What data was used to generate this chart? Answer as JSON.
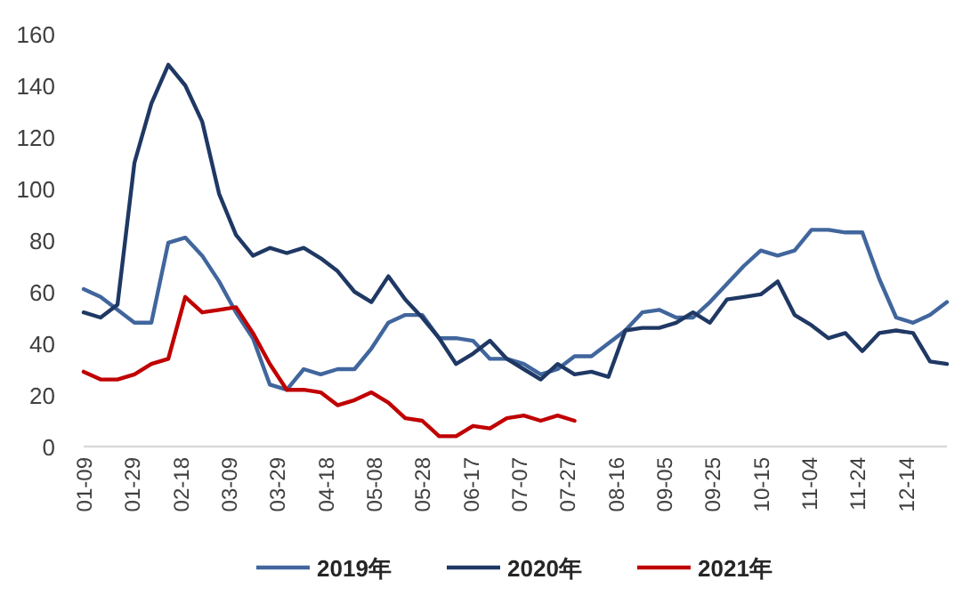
{
  "chart_data": {
    "type": "line",
    "x": [
      "--01-09",
      "--01-16",
      "--01-23",
      "--01-30",
      "--02-06",
      "--02-13",
      "--02-20",
      "--02-27",
      "--03-05",
      "--03-12",
      "--03-19",
      "--03-26",
      "--04-02",
      "--04-09",
      "--04-16",
      "--04-23",
      "--04-30",
      "--05-07",
      "--05-14",
      "--05-21",
      "--05-28",
      "--06-04",
      "--06-11",
      "--06-18",
      "--06-25",
      "--07-02",
      "--07-09",
      "--07-16",
      "--07-23",
      "--07-30",
      "--08-06",
      "--08-13",
      "--08-20",
      "--08-27",
      "--09-03",
      "--09-10",
      "--09-17",
      "--09-24",
      "--10-01",
      "--10-08",
      "--10-15",
      "--10-22",
      "--10-29",
      "--11-05",
      "--11-12",
      "--11-19",
      "--11-26",
      "--12-03",
      "--12-10",
      "--12-17",
      "--12-24",
      "--12-31"
    ],
    "series": [
      {
        "name": "2019年",
        "color": "#41669d",
        "values": [
          61,
          58,
          53,
          48,
          48,
          79,
          81,
          74,
          64,
          52,
          42,
          24,
          22,
          30,
          28,
          30,
          30,
          38,
          48,
          51,
          51,
          42,
          42,
          41,
          34,
          34,
          32,
          28,
          30,
          35,
          35,
          40,
          45,
          52,
          53,
          50,
          50,
          56,
          63,
          70,
          76,
          74,
          76,
          84,
          84,
          83,
          83,
          65,
          50,
          48,
          51,
          56
        ]
      },
      {
        "name": "2020年",
        "color": "#1f3864",
        "values": [
          52,
          50,
          55,
          110,
          133,
          148,
          140,
          126,
          98,
          82,
          74,
          77,
          75,
          77,
          73,
          68,
          60,
          56,
          66,
          57,
          50,
          42,
          32,
          36,
          41,
          34,
          30,
          26,
          32,
          28,
          29,
          27,
          45,
          46,
          46,
          48,
          52,
          48,
          57,
          58,
          59,
          64,
          51,
          47,
          42,
          44,
          37,
          44,
          45,
          44,
          33,
          32
        ]
      },
      {
        "name": "2021年",
        "color": "#c00000",
        "values": [
          29,
          26,
          26,
          28,
          32,
          34,
          58,
          52,
          53,
          54,
          44,
          32,
          22,
          22,
          21,
          16,
          18,
          21,
          17,
          11,
          10,
          4,
          4,
          8,
          7,
          11,
          12,
          10,
          12,
          10,
          null,
          null,
          null,
          null,
          null,
          null,
          null,
          null,
          null,
          null,
          null,
          null,
          null,
          null,
          null,
          null,
          null,
          null,
          null,
          null,
          null,
          null
        ]
      }
    ],
    "xlim": [
      "--01-09",
      "--12-31"
    ],
    "xticks": [
      {
        "value": "--01-09",
        "label": "01-09"
      },
      {
        "value": "--01-29",
        "label": "01-29"
      },
      {
        "value": "--02-18",
        "label": "02-18"
      },
      {
        "value": "--03-09",
        "label": "03-09"
      },
      {
        "value": "--03-29",
        "label": "03-29"
      },
      {
        "value": "--04-18",
        "label": "04-18"
      },
      {
        "value": "--05-08",
        "label": "05-08"
      },
      {
        "value": "--05-28",
        "label": "05-28"
      },
      {
        "value": "--06-17",
        "label": "06-17"
      },
      {
        "value": "--07-07",
        "label": "07-07"
      },
      {
        "value": "--07-27",
        "label": "07-27"
      },
      {
        "value": "--08-16",
        "label": "08-16"
      },
      {
        "value": "--09-05",
        "label": "09-05"
      },
      {
        "value": "--09-25",
        "label": "09-25"
      },
      {
        "value": "--10-15",
        "label": "10-15"
      },
      {
        "value": "--11-04",
        "label": "11-04"
      },
      {
        "value": "--11-24",
        "label": "11-24"
      },
      {
        "value": "--12-14",
        "label": "12-14"
      }
    ],
    "ylim": [
      0,
      160
    ],
    "yticks": [
      0,
      20,
      40,
      60,
      80,
      100,
      120,
      140,
      160
    ],
    "legend": "bottom"
  }
}
